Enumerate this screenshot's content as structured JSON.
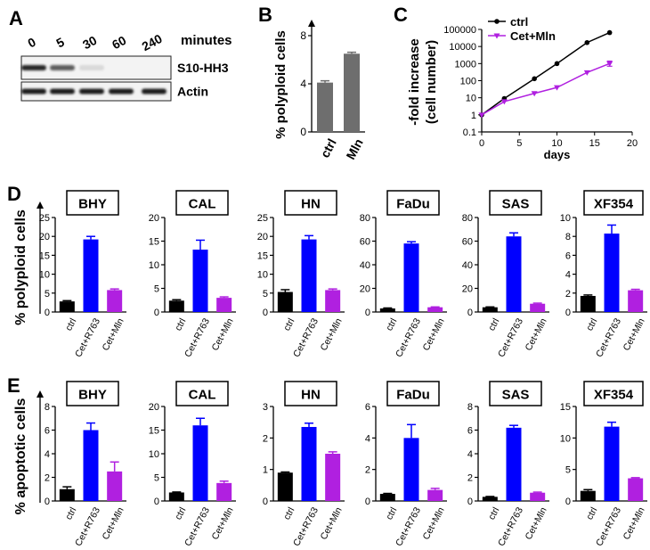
{
  "panel_letters": [
    "A",
    "B",
    "C",
    "D",
    "E"
  ],
  "western_blot": {
    "lanes": [
      "0",
      "5",
      "30",
      "60",
      "240"
    ],
    "unit_label": "minutes",
    "bands": [
      {
        "name": "S10-HH3",
        "intensity": [
          0.95,
          0.7,
          0.12,
          0.0,
          0.0
        ]
      },
      {
        "name": "Actin",
        "intensity": [
          1,
          1,
          1,
          1,
          1
        ]
      }
    ]
  },
  "colors": {
    "ctrl": "#000000",
    "cet_r763": "#0000ff",
    "cet_mln": "#b020e0",
    "panel_b_bar": "#6e6e6e",
    "blot_band": "#1a1a1a"
  },
  "chart_data": [
    {
      "id": "B",
      "type": "bar",
      "ylabel": "% polyploid cells",
      "categories": [
        "ctrl",
        "Mln"
      ],
      "values": [
        4.1,
        6.5
      ],
      "errors": [
        0.15,
        0.12
      ],
      "ylim": [
        0,
        8
      ],
      "yticks": [
        "0",
        "4",
        "8"
      ]
    },
    {
      "id": "C",
      "type": "line",
      "scale_y": "log",
      "xlabel": "days",
      "ylabel_lines": [
        "-fold increase",
        "(cell number)"
      ],
      "xlim": [
        0,
        20
      ],
      "ylim": [
        0.1,
        100000
      ],
      "xticks": [
        "0",
        "5",
        "10",
        "15",
        "20"
      ],
      "yticks": [
        "0.1",
        "1",
        "10",
        "100",
        "1000",
        "10000",
        "100000"
      ],
      "legend_position": "top-left",
      "series": [
        {
          "name": "ctrl",
          "color": "#000000",
          "marker": "circle",
          "x": [
            0,
            3,
            7,
            10,
            14,
            17
          ],
          "y": [
            1,
            9,
            130,
            1000,
            17000,
            65000
          ]
        },
        {
          "name": "Cet+Mln",
          "color": "#b020e0",
          "marker": "triangle-down",
          "x": [
            0,
            3,
            7,
            10,
            14,
            17
          ],
          "y": [
            1,
            6,
            18,
            40,
            300,
            1000
          ],
          "err_low": [
            1,
            6,
            18,
            40,
            300,
            700
          ],
          "err_high": [
            1,
            6,
            18,
            40,
            300,
            1400
          ]
        }
      ]
    },
    {
      "id": "D",
      "type": "bar",
      "ylabel": "% polyploid cells",
      "categories": [
        "ctrl",
        "Cet+R763",
        "Cet+Mln"
      ],
      "charts": [
        {
          "title": "BHY",
          "ylim": [
            0,
            25
          ],
          "yticks": [
            "0",
            "5",
            "10",
            "15",
            "20",
            "25"
          ],
          "values": [
            2.8,
            19.2,
            5.8
          ],
          "errors": [
            0.2,
            0.8,
            0.3
          ]
        },
        {
          "title": "CAL",
          "ylim": [
            0,
            20
          ],
          "yticks": [
            "0",
            "5",
            "10",
            "15",
            "20"
          ],
          "values": [
            2.4,
            13.2,
            3.0
          ],
          "errors": [
            0.2,
            2.0,
            0.2
          ]
        },
        {
          "title": "HN",
          "ylim": [
            0,
            25
          ],
          "yticks": [
            "0",
            "5",
            "10",
            "15",
            "20",
            "25"
          ],
          "values": [
            5.3,
            19.2,
            5.8
          ],
          "errors": [
            0.6,
            1.0,
            0.3
          ]
        },
        {
          "title": "FaDu",
          "ylim": [
            0,
            80
          ],
          "yticks": [
            "0",
            "20",
            "40",
            "60",
            "80"
          ],
          "values": [
            3.0,
            58.0,
            4.0
          ],
          "errors": [
            0.4,
            1.5,
            0.3
          ]
        },
        {
          "title": "SAS",
          "ylim": [
            0,
            80
          ],
          "yticks": [
            "0",
            "20",
            "40",
            "60",
            "80"
          ],
          "values": [
            4.0,
            64.0,
            7.0
          ],
          "errors": [
            0.3,
            3.0,
            0.5
          ]
        },
        {
          "title": "XF354",
          "ylim": [
            0,
            10
          ],
          "yticks": [
            "0",
            "2",
            "4",
            "6",
            "8",
            "10"
          ],
          "values": [
            1.7,
            8.3,
            2.3
          ],
          "errors": [
            0.1,
            0.9,
            0.1
          ]
        }
      ]
    },
    {
      "id": "E",
      "type": "bar",
      "ylabel": "% apoptotic cells",
      "categories": [
        "ctrl",
        "Cet+R763",
        "Cet+Mln"
      ],
      "charts": [
        {
          "title": "BHY",
          "ylim": [
            0,
            8
          ],
          "yticks": [
            "0",
            "2",
            "4",
            "6",
            "8"
          ],
          "values": [
            1.0,
            6.0,
            2.5
          ],
          "errors": [
            0.2,
            0.6,
            0.8
          ]
        },
        {
          "title": "CAL",
          "ylim": [
            0,
            20
          ],
          "yticks": [
            "0",
            "5",
            "10",
            "15",
            "20"
          ],
          "values": [
            1.8,
            16.0,
            3.8
          ],
          "errors": [
            0.1,
            1.5,
            0.4
          ]
        },
        {
          "title": "HN",
          "ylim": [
            0,
            3
          ],
          "yticks": [
            "0",
            "1",
            "2",
            "3"
          ],
          "values": [
            0.9,
            2.35,
            1.5
          ],
          "errors": [
            0.02,
            0.12,
            0.06
          ]
        },
        {
          "title": "FaDu",
          "ylim": [
            0,
            6
          ],
          "yticks": [
            "0",
            "2",
            "4",
            "6"
          ],
          "values": [
            0.45,
            4.0,
            0.7
          ],
          "errors": [
            0.03,
            0.85,
            0.1
          ]
        },
        {
          "title": "SAS",
          "ylim": [
            0,
            8
          ],
          "yticks": [
            "0",
            "2",
            "4",
            "6",
            "8"
          ],
          "values": [
            0.35,
            6.2,
            0.7
          ],
          "errors": [
            0.03,
            0.2,
            0.05
          ]
        },
        {
          "title": "XF354",
          "ylim": [
            0,
            15
          ],
          "yticks": [
            "0",
            "5",
            "10",
            "15"
          ],
          "values": [
            1.6,
            11.8,
            3.6
          ],
          "errors": [
            0.2,
            0.7,
            0.1
          ]
        }
      ]
    }
  ]
}
